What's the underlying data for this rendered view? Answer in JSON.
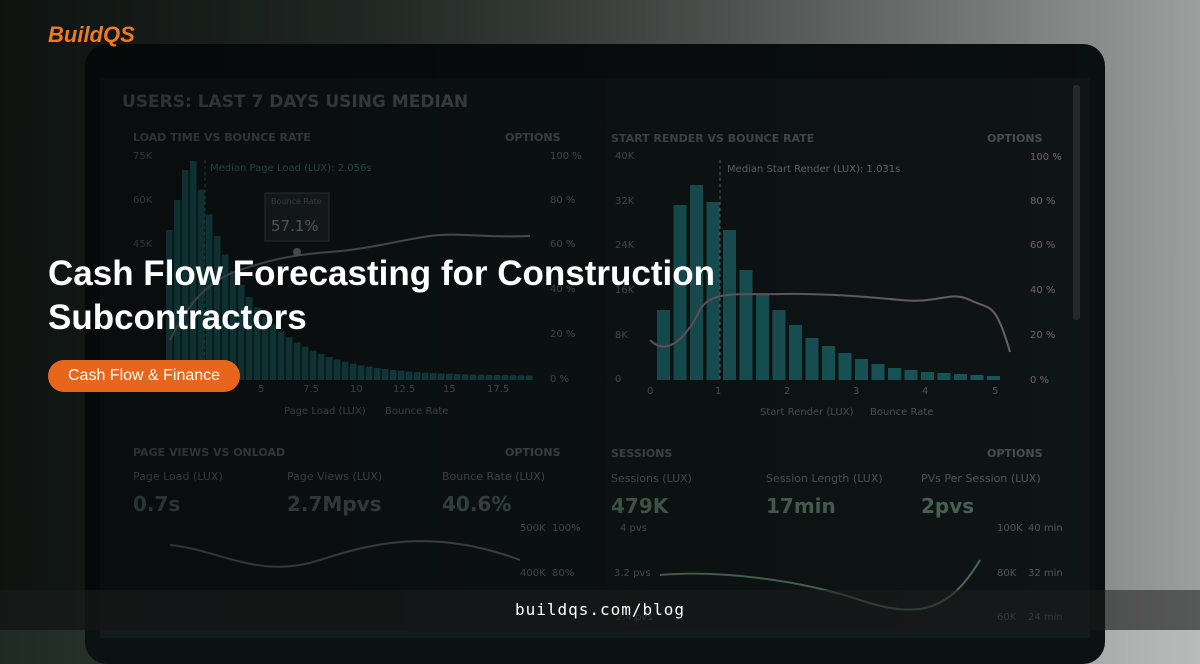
{
  "brand": "BuildQS",
  "title": "Cash Flow Forecasting for Construction Subcontractors",
  "tag": "Cash Flow & Finance",
  "url": "buildqs.com/blog",
  "screen": {
    "heading": "USERS: LAST 7 DAYS USING MEDIAN",
    "panels": [
      {
        "title": "LOAD TIME VS BOUNCE RATE",
        "options": "OPTIONS",
        "note": "Median Page Load (LUX): 2.056s",
        "legend": [
          "Page Load (LUX)",
          "Bounce Rate"
        ],
        "y_labels": [
          "75K",
          "60K",
          "45K"
        ],
        "y2_labels": [
          "100 %",
          "80 %",
          "60 %",
          "40 %",
          "20 %",
          "0 %"
        ],
        "x_labels": [
          "5",
          "7.5",
          "10",
          "12.5",
          "15",
          "17.5"
        ]
      },
      {
        "title": "START RENDER VS BOUNCE RATE",
        "options": "OPTIONS",
        "note": "Median Start Render (LUX): 1.031s",
        "legend": [
          "Start Render (LUX)",
          "Bounce Rate"
        ],
        "y_labels": [
          "40K",
          "32K",
          "24K",
          "16K",
          "8K",
          "0"
        ],
        "y2_labels": [
          "100 %",
          "80 %",
          "60 %",
          "40 %",
          "20 %",
          "0 %"
        ],
        "x_labels": [
          "0",
          "1",
          "2",
          "3",
          "4",
          "5"
        ]
      },
      {
        "title": "PAGE VIEWS VS ONLOAD",
        "options": "OPTIONS",
        "metrics": [
          {
            "label": "Page Load (LUX)",
            "value": "0.7s"
          },
          {
            "label": "Page Views (LUX)",
            "value": "2.7Mpvs"
          },
          {
            "label": "Bounce Rate (LUX)",
            "value": "40.6%"
          }
        ],
        "axis_labels": [
          "500K",
          "400K",
          "100%",
          "80%"
        ]
      },
      {
        "title": "SESSIONS",
        "options": "OPTIONS",
        "metrics": [
          {
            "label": "Sessions (LUX)",
            "value": "479K"
          },
          {
            "label": "Session Length (LUX)",
            "value": "17min"
          },
          {
            "label": "PVs Per Session (LUX)",
            "value": "2pvs"
          }
        ],
        "axis_labels": [
          "4 pvs",
          "3.2 pvs",
          "2.4 pvs",
          "100K",
          "80K",
          "60K",
          "40 min",
          "32 min",
          "24 min"
        ]
      }
    ],
    "tooltip": {
      "label": "Bounce Rate",
      "value": "57.1%"
    }
  }
}
